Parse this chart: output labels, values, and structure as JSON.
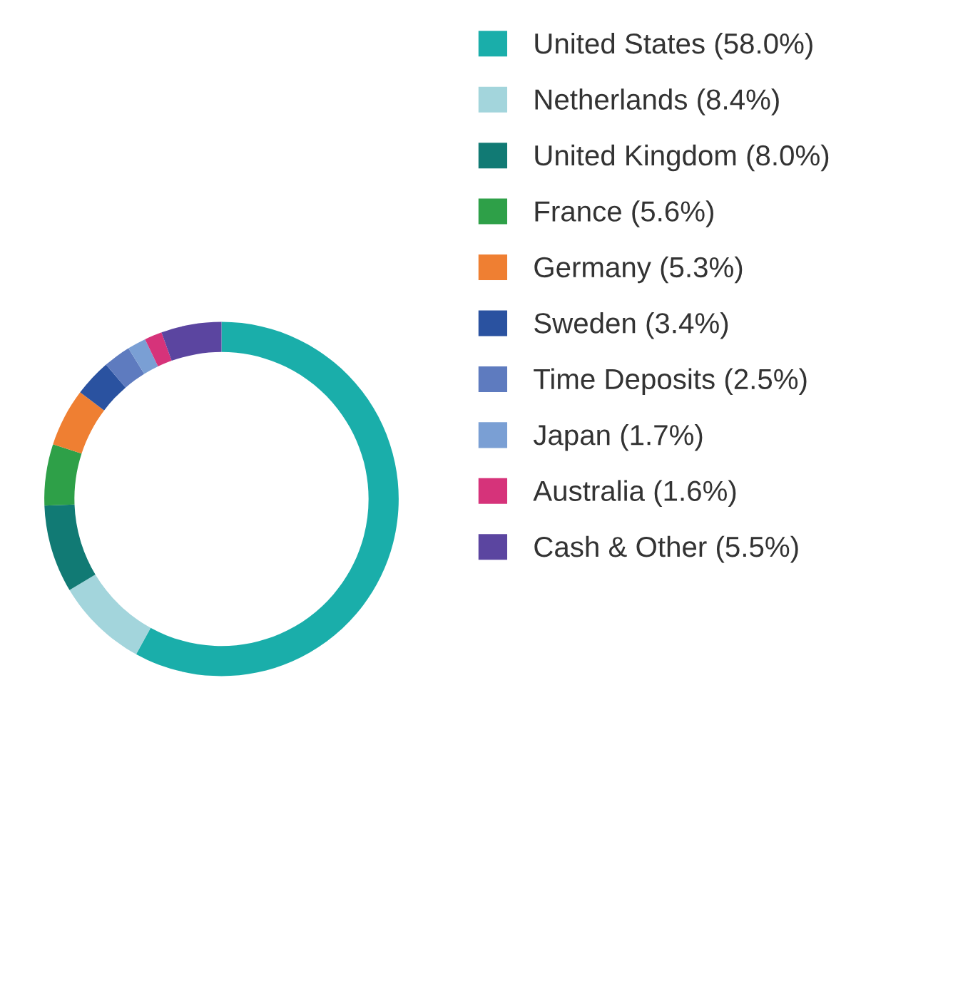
{
  "chart_data": {
    "type": "donut",
    "categories": [
      "United States (58.0%)",
      "Netherlands (8.4%)",
      "United Kingdom (8.0%)",
      "France (5.6%)",
      "Germany (5.3%)",
      "Sweden (3.4%)",
      "Time Deposits (2.5%)",
      "Japan (1.7%)",
      "Australia (1.6%)",
      "Cash & Other (5.5%)"
    ],
    "values": [
      58.0,
      8.4,
      8.0,
      5.6,
      5.3,
      3.4,
      2.5,
      1.7,
      1.6,
      5.5
    ],
    "colors": [
      "#1aaeaa",
      "#a3d5dc",
      "#117a74",
      "#2ea048",
      "#ef7f32",
      "#2a52a0",
      "#5e7bbf",
      "#7a9fd4",
      "#d6337a",
      "#5b45a0"
    ],
    "legend": "right"
  }
}
